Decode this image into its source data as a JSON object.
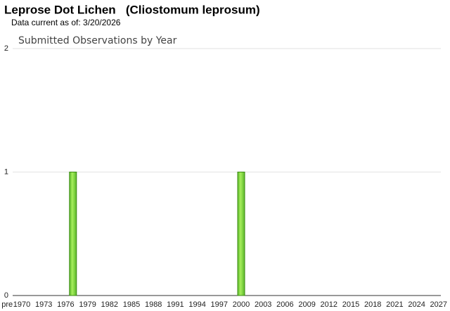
{
  "header": {
    "title": "Leprose Dot Lichen   (Cliostomum leprosum)",
    "subtitle": "Data current as of: 3/20/2026"
  },
  "chart_data": {
    "type": "bar",
    "title": "Submitted Observations by Year",
    "categories": [
      "pre",
      null,
      "1970",
      null,
      null,
      "1973",
      null,
      null,
      "1976",
      null,
      null,
      "1979",
      null,
      null,
      "1982",
      null,
      null,
      "1985",
      null,
      null,
      "1988",
      null,
      null,
      "1991",
      null,
      null,
      "1994",
      null,
      null,
      "1997",
      null,
      null,
      "2000",
      null,
      null,
      "2003",
      null,
      null,
      "2006",
      null,
      null,
      "2009",
      null,
      null,
      "2012",
      null,
      null,
      "2015",
      null,
      null,
      "2018",
      null,
      null,
      "2021",
      null,
      null,
      "2024",
      null,
      null,
      "2027"
    ],
    "values": [
      0,
      0,
      0,
      0,
      0,
      0,
      0,
      0,
      0,
      1,
      0,
      0,
      0,
      0,
      0,
      0,
      0,
      0,
      0,
      0,
      0,
      0,
      0,
      0,
      0,
      0,
      0,
      0,
      0,
      0,
      0,
      0,
      1,
      0,
      0,
      0,
      0,
      0,
      0,
      0,
      0,
      0,
      0,
      0,
      0,
      0,
      0,
      0,
      0,
      0,
      0,
      0,
      0,
      0,
      0,
      0,
      0,
      0,
      0,
      0
    ],
    "color": "#7ed321",
    "ylim": [
      0,
      2
    ],
    "yticks": [
      0,
      1,
      2
    ],
    "grid": true
  }
}
